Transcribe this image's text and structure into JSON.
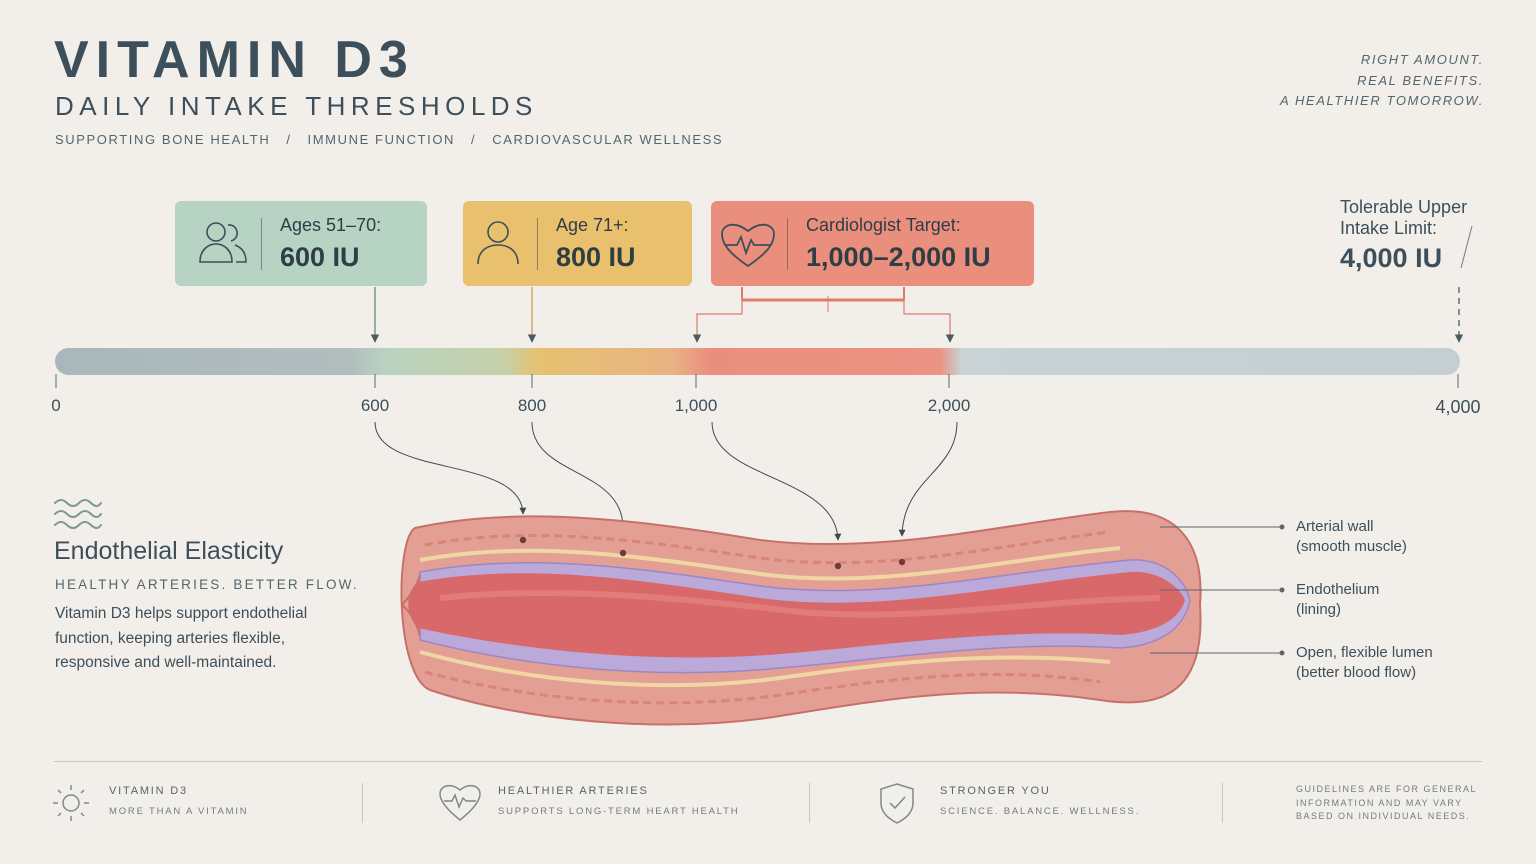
{
  "header": {
    "title": "VITAMIN D3",
    "subtitle": "DAILY INTAKE THRESHOLDS",
    "kickers": [
      "SUPPORTING BONE HEALTH",
      "IMMUNE FUNCTION",
      "CARDIOVASCULAR WELLNESS"
    ],
    "separator": "/",
    "tagline": [
      "RIGHT AMOUNT.",
      "REAL BENEFITS.",
      "A HEALTHIER TOMORROW."
    ]
  },
  "thresholds": [
    {
      "label": "Ages 51–70:",
      "value": "600 IU",
      "icon": "group-icon",
      "color": "#b6d3c4"
    },
    {
      "label": "Age 71+:",
      "value": "800 IU",
      "icon": "person-icon",
      "color": "#e8c06e"
    },
    {
      "label": "Cardiologist Target:",
      "value": "1,000–2,000 IU",
      "icon": "heart-pulse-icon",
      "color": "#ea8e7e"
    }
  ],
  "upper_limit": {
    "label_line1": "Tolerable Upper",
    "label_line2": "Intake Limit:",
    "value": "4,000 IU"
  },
  "scale": {
    "ticks": [
      "0",
      "600",
      "800",
      "1,000",
      "2,000",
      "4,000"
    ],
    "min": 0,
    "max": 4000
  },
  "endothelial": {
    "icon": "waves-icon",
    "title": "Endothelial Elasticity",
    "kicker": "HEALTHY ARTERIES. BETTER FLOW.",
    "body": "Vitamin D3 helps support endothelial function, keeping arteries flexible, responsive and well-maintained."
  },
  "artery_callouts": [
    {
      "line1": "Arterial wall",
      "line2": "(smooth muscle)"
    },
    {
      "line1": "Endothelium",
      "line2": "(lining)"
    },
    {
      "line1": "Open, flexible lumen",
      "line2": "(better blood flow)"
    }
  ],
  "footer": {
    "items": [
      {
        "icon": "sun-icon",
        "title": "VITAMIN D3",
        "sub": "MORE THAN A VITAMIN"
      },
      {
        "icon": "heart-pulse-icon",
        "title": "HEALTHIER ARTERIES",
        "sub": "SUPPORTS LONG-TERM HEART HEALTH"
      },
      {
        "icon": "shield-check-icon",
        "title": "STRONGER YOU",
        "sub": "SCIENCE. BALANCE. WELLNESS."
      }
    ],
    "note": "GUIDELINES ARE FOR GENERAL\nINFORMATION AND MAY VARY\nBASED ON INDIVIDUAL NEEDS."
  },
  "colors": {
    "ink": "#3d4f5a",
    "sage": "#b6d3c4",
    "amber": "#e8c06e",
    "coral": "#ea8e7e",
    "bar_slate": "#a9b6bb",
    "bar_light": "#c3ced1",
    "artery_wall": "#e8a29a",
    "endothelium": "#b7a6d8",
    "lumen": "#d9686a"
  }
}
